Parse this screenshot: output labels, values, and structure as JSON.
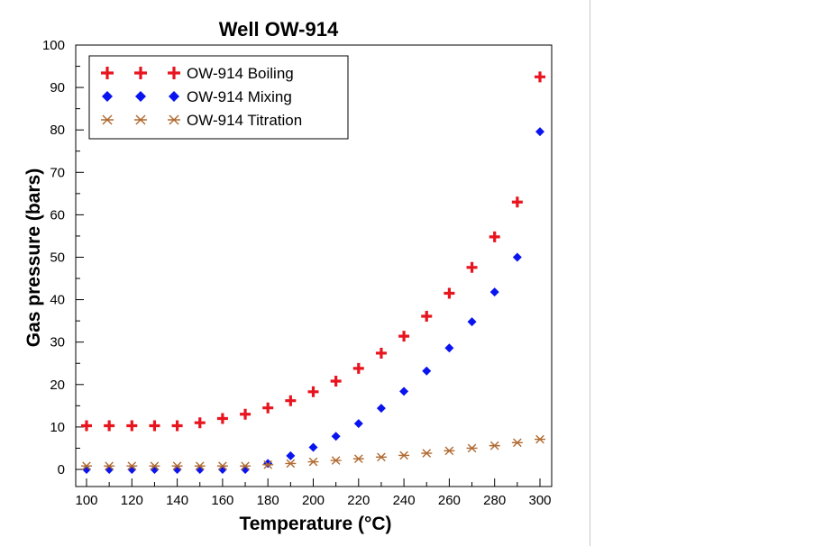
{
  "chart_data": {
    "type": "scatter",
    "title": "Well OW-914",
    "xlabel": "Temperature (°C)",
    "ylabel": "Gas pressure (bars)",
    "xlim": [
      100,
      300
    ],
    "ylim": [
      0,
      100
    ],
    "x_ticks": [
      100,
      120,
      140,
      160,
      180,
      200,
      220,
      240,
      260,
      280,
      300
    ],
    "y_ticks": [
      0,
      10,
      20,
      30,
      40,
      50,
      60,
      70,
      80,
      90,
      100
    ],
    "legend_position": "top-left",
    "grid": false,
    "x": [
      100,
      110,
      120,
      130,
      140,
      150,
      160,
      170,
      180,
      190,
      200,
      210,
      220,
      230,
      240,
      250,
      260,
      270,
      280,
      290,
      300
    ],
    "series": [
      {
        "name": "OW-914 Boiling",
        "marker": "plus",
        "color": "#e8141e",
        "values": [
          10.3,
          10.3,
          10.3,
          10.3,
          10.3,
          11.0,
          12.0,
          13.0,
          14.5,
          16.2,
          18.3,
          20.8,
          23.8,
          27.4,
          31.4,
          36.1,
          41.5,
          47.6,
          54.8,
          63.0,
          92.5
        ]
      },
      {
        "name": "OW-914 Mixing",
        "marker": "diamond",
        "color": "#0a14ee",
        "values": [
          0,
          0,
          0,
          0,
          0,
          0,
          0,
          0,
          1.4,
          3.2,
          5.2,
          7.8,
          10.8,
          14.4,
          18.4,
          23.2,
          28.6,
          34.8,
          41.8,
          50.0,
          79.6
        ]
      },
      {
        "name": "OW-914 Titration",
        "marker": "asterisk",
        "color": "#b06a30",
        "values": [
          0.8,
          0.8,
          0.8,
          0.8,
          0.8,
          0.8,
          0.8,
          0.8,
          1.1,
          1.4,
          1.8,
          2.1,
          2.5,
          2.9,
          3.3,
          3.8,
          4.4,
          5.0,
          5.6,
          6.3,
          7.1
        ]
      }
    ]
  }
}
